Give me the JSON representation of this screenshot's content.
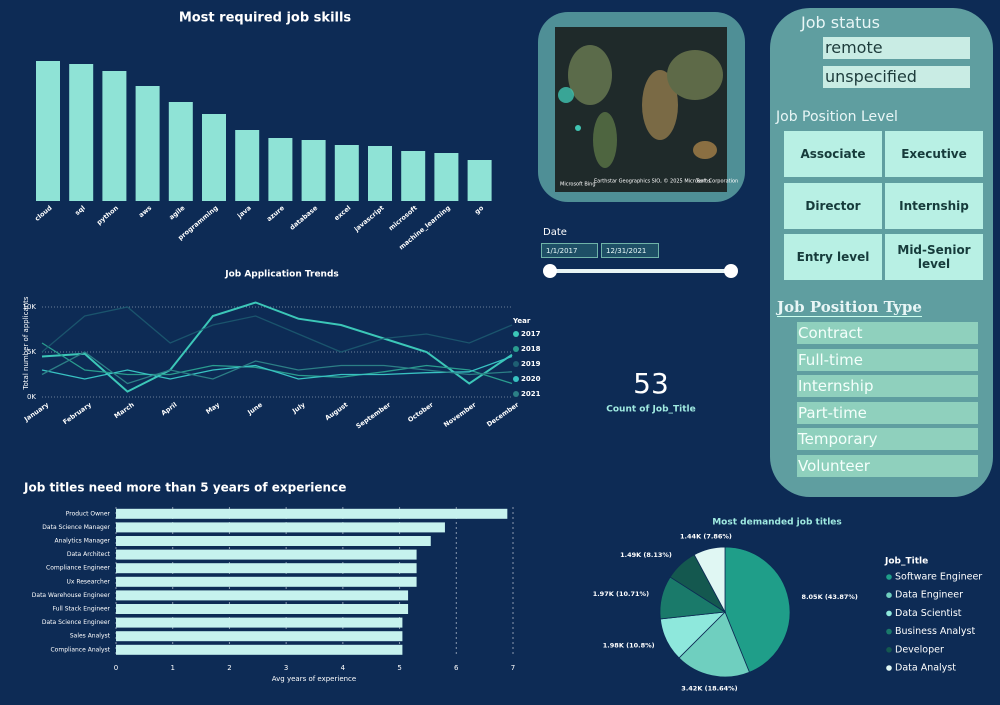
{
  "chart_data": [
    {
      "type": "bar",
      "title": "Most required job skills",
      "categories": [
        "cloud",
        "sql",
        "python",
        "aws",
        "agile",
        "programming",
        "java",
        "azure",
        "database",
        "excel",
        "javascript",
        "microsoft",
        "machine_learning",
        "go"
      ],
      "values": [
        140,
        137,
        130,
        115,
        99,
        87,
        71,
        63,
        61,
        56,
        55,
        50,
        48,
        41
      ],
      "color": "#8fe3d6"
    },
    {
      "type": "line",
      "title": "Job Application Trends",
      "categories": [
        "January",
        "February",
        "March",
        "April",
        "May",
        "June",
        "July",
        "August",
        "September",
        "October",
        "November",
        "December"
      ],
      "y_label": "Total number of applicants",
      "legend_title": "Year",
      "series": [
        {
          "name": "2017",
          "color": "#3cc7b8",
          "values": [
            4500,
            4800,
            600,
            3000,
            9000,
            10500,
            8700,
            8000,
            6500,
            5000,
            1500,
            4700
          ]
        },
        {
          "name": "2018",
          "color": "#2a9d8f",
          "values": [
            6000,
            3000,
            2500,
            2500,
            3500,
            3300,
            2400,
            2200,
            2800,
            3500,
            3000,
            1500
          ]
        },
        {
          "name": "2019",
          "color": "#1e5f73",
          "values": [
            5000,
            9000,
            10000,
            6000,
            8000,
            9000,
            7000,
            5000,
            6500,
            7000,
            6000,
            8000
          ]
        },
        {
          "name": "2020",
          "color": "#38c2c2",
          "values": [
            3000,
            2000,
            3000,
            2000,
            3000,
            3500,
            2000,
            2500,
            2500,
            2700,
            2800,
            4500
          ]
        },
        {
          "name": "2021",
          "color": "#2c7f86",
          "values": [
            2500,
            5000,
            1500,
            3000,
            2000,
            4000,
            3000,
            3500,
            3500,
            3000,
            2500,
            2800
          ]
        }
      ],
      "ylim": [
        0,
        11000
      ],
      "yticks": [
        {
          "value": 0,
          "label": "0K"
        },
        {
          "value": 5000,
          "label": "5K"
        },
        {
          "value": 10000,
          "label": "10K"
        }
      ],
      "grid": true
    },
    {
      "type": "hbar",
      "title": "Job titles need more than 5 years of experience",
      "categories": [
        "Product Owner",
        "Data Science Manager",
        "Analytics Manager",
        "Data Architect",
        "Compliance Engineer",
        "Ux Researcher",
        "Data Warehouse Engineer",
        "Full Stack Engineer",
        "Data Science Engineer",
        "Sales Analyst",
        "Compliance Analyst"
      ],
      "values": [
        6.9,
        5.8,
        5.55,
        5.3,
        5.3,
        5.3,
        5.15,
        5.15,
        5.05,
        5.05,
        5.05
      ],
      "color": "#c6f2ee",
      "x_label": "Avg years of experience",
      "xlim": [
        0,
        7
      ],
      "xticks": [
        0,
        1,
        2,
        3,
        4,
        5,
        6,
        7
      ],
      "grid": true
    },
    {
      "type": "pie",
      "title": "Most demanded job titles",
      "legend_title": "Job_Title",
      "categories": [
        "Software Engineer",
        "Data Engineer",
        "Data Scientist",
        "Business Analyst",
        "Developer",
        "Data Analyst"
      ],
      "values": [
        8050,
        3420,
        1980,
        1970,
        1490,
        1440
      ],
      "value_labels": [
        "8.05K (43.87%)",
        "3.42K (18.64%)",
        "1.98K (10.8%)",
        "1.97K (10.71%)",
        "1.49K (8.13%)",
        "1.44K (7.86%)"
      ],
      "colors": [
        "#1f9e89",
        "#6fcfbf",
        "#8ee8dc",
        "#1a7a6a",
        "#14584f",
        "#e0f7f3"
      ]
    }
  ],
  "map": {
    "logo": "Microsoft Bing",
    "attribution": "Earthstar Geographics SIO, © 2025 Microsoft Corporation",
    "terms": "Terms"
  },
  "date_slicer": {
    "title": "Date",
    "start": "1/1/2017",
    "end": "12/31/2021"
  },
  "card": {
    "value": 53,
    "label": "Count of Job_Title"
  },
  "job_status": {
    "title": "Job status",
    "items": [
      "remote",
      "unspecified"
    ]
  },
  "position_level": {
    "title": "Job Position Level",
    "items": [
      "Associate",
      "Executive",
      "Director",
      "Internship",
      "Entry level",
      "Mid-Senior level"
    ]
  },
  "position_type": {
    "title": "Job Position Type",
    "items": [
      "Contract",
      "Full-time",
      "Internship",
      "Part-time",
      "Temporary",
      "Volunteer"
    ]
  }
}
